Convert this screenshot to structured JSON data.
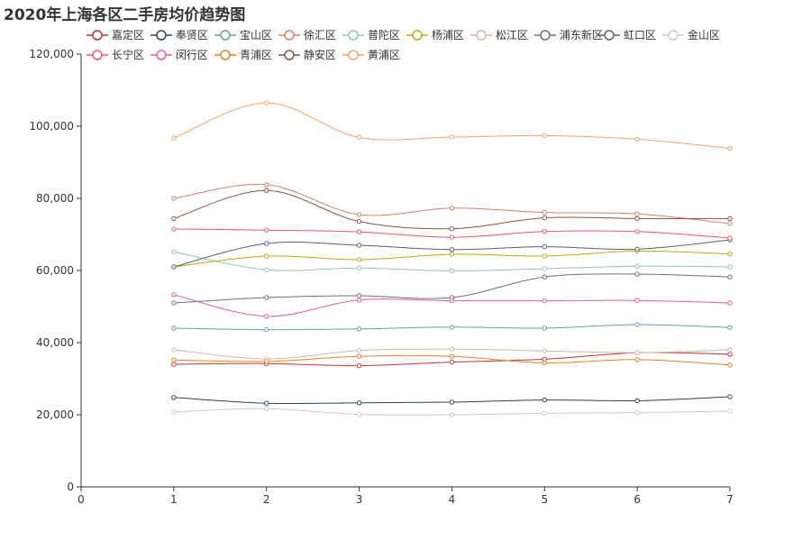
{
  "chart_data": {
    "type": "line",
    "title": "2020年上海各区二手房均价趋势图",
    "xlabel": "",
    "ylabel": "",
    "x": [
      1,
      2,
      3,
      4,
      5,
      6,
      7
    ],
    "xlim": [
      0,
      7
    ],
    "ylim": [
      0,
      120000
    ],
    "y_ticks": [
      0,
      20000,
      40000,
      60000,
      80000,
      100000,
      120000
    ],
    "y_tick_labels": [
      "0",
      "20,000",
      "40,000",
      "60,000",
      "80,000",
      "100,000",
      "120,000"
    ],
    "x_ticks": [
      0,
      1,
      2,
      3,
      4,
      5,
      6,
      7
    ],
    "x_tick_labels": [
      "0",
      "1",
      "2",
      "3",
      "4",
      "5",
      "6",
      "7"
    ],
    "grid": false,
    "smooth": true,
    "legend_position": "top",
    "series": [
      {
        "name": "嘉定区",
        "color": "#c23531",
        "values": [
          34000,
          34200,
          33600,
          34600,
          35400,
          37200,
          36800
        ]
      },
      {
        "name": "奉贤区",
        "color": "#2f4554",
        "values": [
          24800,
          23200,
          23300,
          23500,
          24100,
          23900,
          25000
        ]
      },
      {
        "name": "宝山区",
        "color": "#61a0a8",
        "values": [
          44000,
          43600,
          43800,
          44300,
          44000,
          45000,
          44200
        ]
      },
      {
        "name": "徐汇区",
        "color": "#d48265",
        "values": [
          80000,
          83800,
          75500,
          77300,
          76100,
          75700,
          73000
        ]
      },
      {
        "name": "普陀区",
        "color": "#91c7ae",
        "values": [
          65200,
          60200,
          60700,
          59900,
          60500,
          61200,
          61000
        ]
      },
      {
        "name": "杨浦区",
        "color": "#c7a417",
        "values": [
          61000,
          64000,
          63000,
          64500,
          64000,
          65400,
          64600
        ]
      },
      {
        "name": "松江区",
        "color": "#d5b6a2",
        "values": [
          38000,
          35500,
          37800,
          38200,
          37700,
          37200,
          38000
        ]
      },
      {
        "name": "浦东新区",
        "color": "#6e7074",
        "values": [
          51000,
          52500,
          53000,
          52500,
          58200,
          59000,
          58200
        ]
      },
      {
        "name": "虹口区",
        "color": "#546570",
        "values": [
          61000,
          67500,
          67000,
          65800,
          66600,
          65900,
          68500
        ]
      },
      {
        "name": "金山区",
        "color": "#c4ccd3",
        "values": [
          20800,
          21700,
          20100,
          20000,
          20400,
          20600,
          21000
        ]
      },
      {
        "name": "长宁区",
        "color": "#e7576f",
        "values": [
          71500,
          71200,
          70700,
          69200,
          70800,
          70800,
          69000
        ]
      },
      {
        "name": "闵行区",
        "color": "#e85aa6",
        "values": [
          53300,
          47300,
          51800,
          51600,
          51600,
          51700,
          51000
        ]
      },
      {
        "name": "青浦区",
        "color": "#e0822b",
        "values": [
          35200,
          34800,
          36200,
          36200,
          34400,
          35300,
          33800
        ]
      },
      {
        "name": "静安区",
        "color": "#8c5440",
        "values": [
          74400,
          82200,
          73600,
          71600,
          74600,
          74400,
          74400
        ]
      },
      {
        "name": "黄浦区",
        "color": "#f5a468",
        "values": [
          96700,
          106500,
          96900,
          97000,
          97400,
          96400,
          93900
        ]
      }
    ]
  }
}
